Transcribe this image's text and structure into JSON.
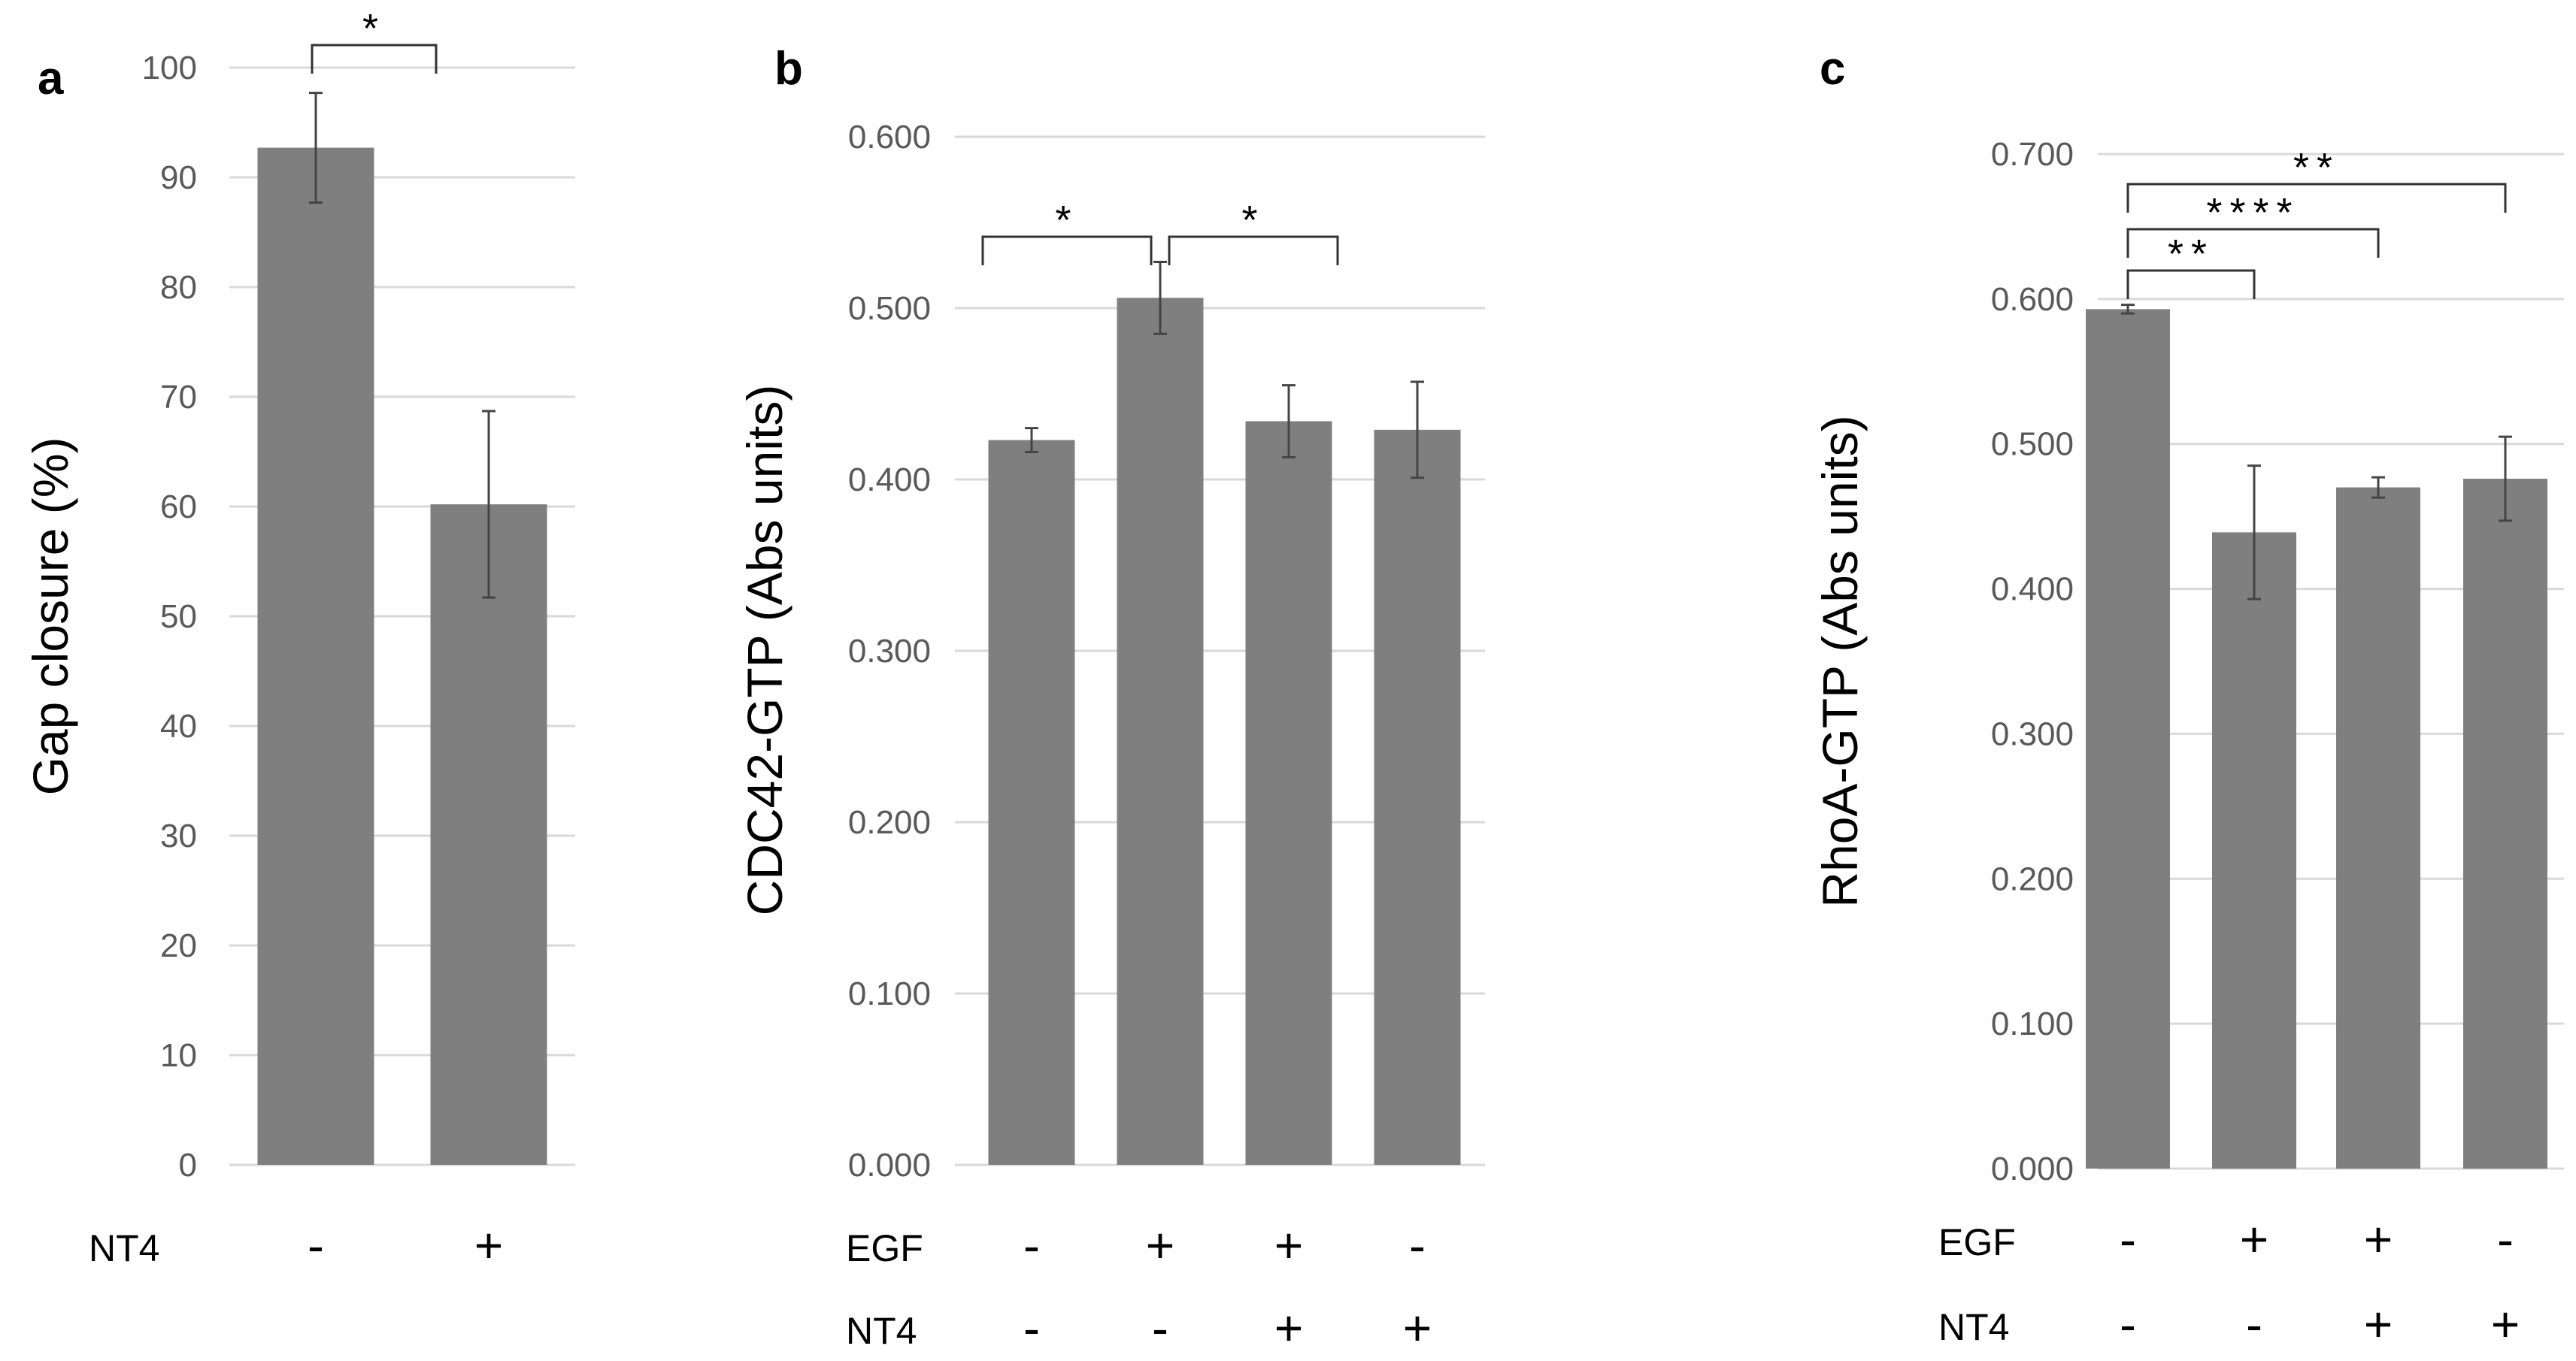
{
  "colors": {
    "bar": "#7f7f7f",
    "grid": "#d9d9d9",
    "tick": "#595959",
    "error": "#444444"
  },
  "chart_data": [
    {
      "panel": "a",
      "type": "bar",
      "ylabel": "Gap closure (%)",
      "ylim": [
        0,
        100
      ],
      "yticks": [
        "0",
        "10",
        "20",
        "30",
        "40",
        "50",
        "60",
        "70",
        "80",
        "90",
        "100"
      ],
      "ytick_values": [
        0,
        10,
        20,
        30,
        40,
        50,
        60,
        70,
        80,
        90,
        100
      ],
      "values": [
        92.7,
        60.2
      ],
      "errors": [
        5.0,
        8.5
      ],
      "condition_rows": [
        {
          "label": "NT4",
          "signs": [
            "-",
            "+"
          ]
        }
      ],
      "significance": [
        {
          "from": 0,
          "to": 1,
          "label": "*"
        }
      ]
    },
    {
      "panel": "b",
      "type": "bar",
      "ylabel": "CDC42-GTP (Abs units)",
      "ylim": [
        0,
        0.6
      ],
      "yticks": [
        "0.000",
        "0.100",
        "0.200",
        "0.300",
        "0.400",
        "0.500",
        "0.600"
      ],
      "ytick_values": [
        0,
        0.1,
        0.2,
        0.3,
        0.4,
        0.5,
        0.6
      ],
      "values": [
        0.423,
        0.506,
        0.434,
        0.429
      ],
      "errors": [
        0.007,
        0.021,
        0.021,
        0.028
      ],
      "condition_rows": [
        {
          "label": "EGF",
          "signs": [
            "-",
            "+",
            "+",
            "-"
          ]
        },
        {
          "label": "NT4",
          "signs": [
            "-",
            "-",
            "+",
            "+"
          ]
        }
      ],
      "significance": [
        {
          "from": 0,
          "to": 1,
          "label": "*"
        },
        {
          "from": 1,
          "to": 2,
          "label": "*"
        }
      ]
    },
    {
      "panel": "c",
      "type": "bar",
      "ylabel": "RhoA-GTP (Abs units)",
      "ylim": [
        0,
        0.7
      ],
      "yticks": [
        "0.000",
        "0.100",
        "0.200",
        "0.300",
        "0.400",
        "0.500",
        "0.600",
        "0.700"
      ],
      "ytick_values": [
        0,
        0.1,
        0.2,
        0.3,
        0.4,
        0.5,
        0.6,
        0.7
      ],
      "values": [
        0.593,
        0.439,
        0.47,
        0.476
      ],
      "errors": [
        0.003,
        0.046,
        0.007,
        0.029
      ],
      "condition_rows": [
        {
          "label": "EGF",
          "signs": [
            "-",
            "+",
            "+",
            "-"
          ]
        },
        {
          "label": "NT4",
          "signs": [
            "-",
            "-",
            "+",
            "+"
          ]
        }
      ],
      "significance": [
        {
          "from": 0,
          "to": 3,
          "label": "**"
        },
        {
          "from": 0,
          "to": 2,
          "label": "****"
        },
        {
          "from": 0,
          "to": 1,
          "label": "**"
        }
      ]
    }
  ]
}
